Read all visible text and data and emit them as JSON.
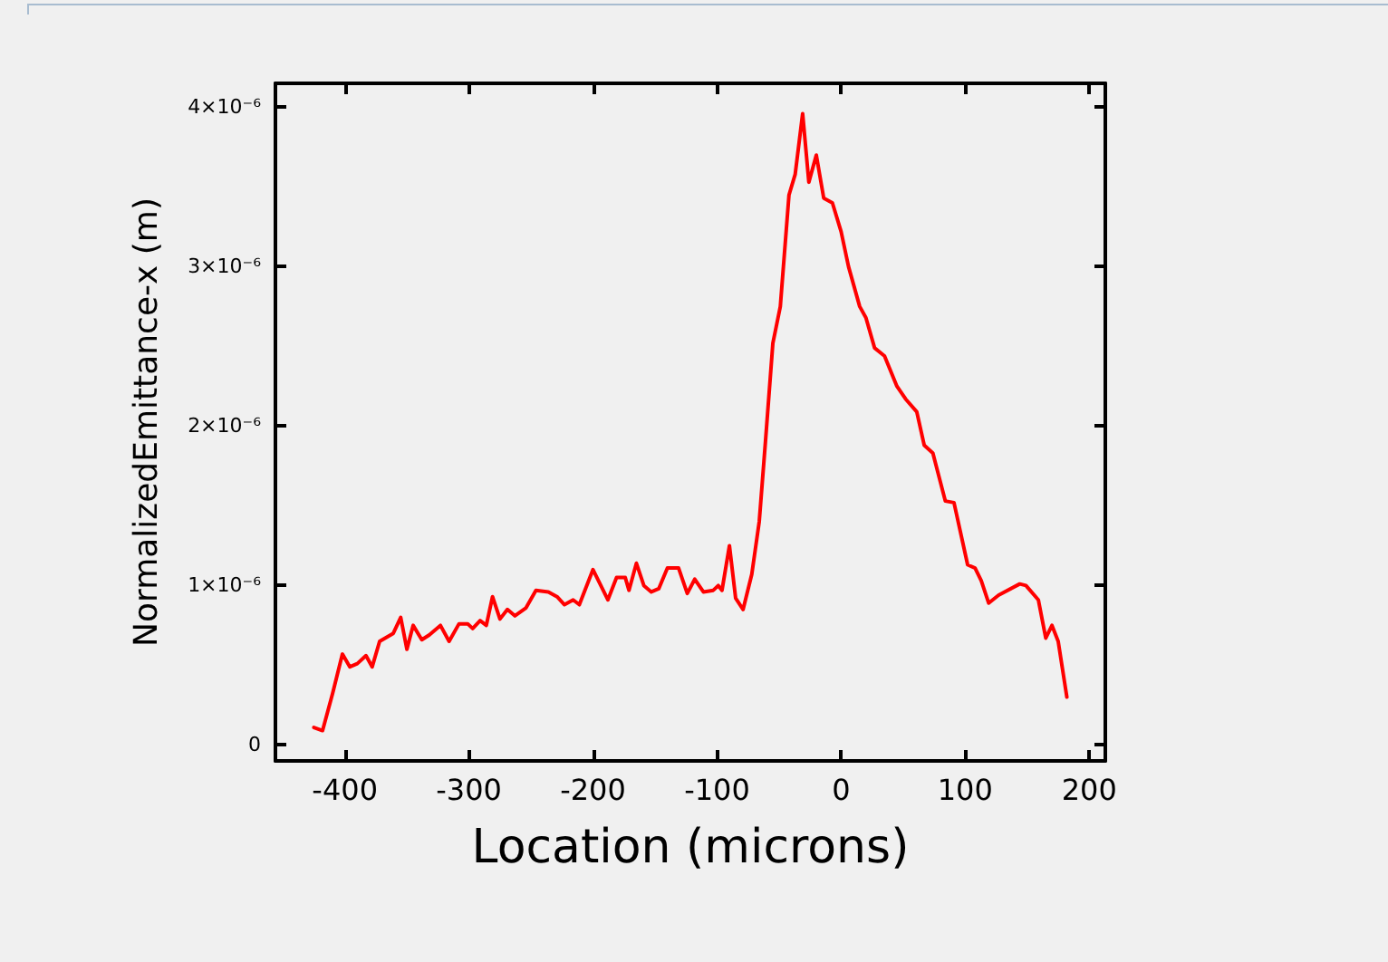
{
  "chart_data": {
    "type": "line",
    "xlabel": "Location (microns)",
    "ylabel": "NormalizedEmittance-x (m)",
    "xlim": [
      -456,
      213
    ],
    "ylim": [
      -1e-07,
      4.15e-06
    ],
    "xticks": [
      -400,
      -300,
      -200,
      -100,
      0,
      100,
      200
    ],
    "yticks": [
      0,
      {
        "value": 1e-06,
        "label": "1×10⁻⁶"
      },
      {
        "value": 2e-06,
        "label": "2×10⁻⁶"
      },
      {
        "value": 3e-06,
        "label": "3×10⁻⁶"
      },
      {
        "value": 4e-06,
        "label": "4×10⁻⁶"
      }
    ],
    "grid": false,
    "marker": "none",
    "line_style": "solid",
    "series": [
      {
        "color": "#ff0000",
        "x": [
          -425,
          -418,
          -410,
          -402,
          -396,
          -390,
          -383,
          -378,
          -372,
          -361,
          -355,
          -350,
          -345,
          -338,
          -332,
          -323,
          -316,
          -308,
          -301,
          -297,
          -291,
          -286,
          -281,
          -275,
          -269,
          -263,
          -254,
          -246,
          -236,
          -229,
          -223,
          -216,
          -211,
          -200,
          -188,
          -181,
          -174,
          -171,
          -165,
          -159,
          -153,
          -147,
          -140,
          -131,
          -124,
          -118,
          -111,
          -103,
          -99,
          -96,
          -90,
          -85,
          -79,
          -72,
          -66,
          -61,
          -55,
          -49,
          -42,
          -37,
          -31,
          -26,
          -20,
          -14,
          -7,
          0,
          6,
          15,
          20,
          27,
          35,
          45,
          52,
          61,
          67,
          74,
          84,
          91,
          102,
          108,
          113,
          119,
          127,
          144,
          149,
          159,
          165,
          170,
          175,
          182
        ],
        "values": [
          1.1e-07,
          9e-08,
          3.2e-07,
          5.7e-07,
          4.9e-07,
          5.1e-07,
          5.6e-07,
          4.9e-07,
          6.5e-07,
          7e-07,
          8e-07,
          6e-07,
          7.5e-07,
          6.6e-07,
          6.9e-07,
          7.5e-07,
          6.5e-07,
          7.6e-07,
          7.6e-07,
          7.3e-07,
          7.8e-07,
          7.5e-07,
          9.3e-07,
          7.9e-07,
          8.5e-07,
          8.1e-07,
          8.6e-07,
          9.7e-07,
          9.6e-07,
          9.3e-07,
          8.8e-07,
          9.1e-07,
          8.8e-07,
          1.1e-06,
          9.1e-07,
          1.05e-06,
          1.05e-06,
          9.7e-07,
          1.14e-06,
          1e-06,
          9.6e-07,
          9.8e-07,
          1.11e-06,
          1.11e-06,
          9.5e-07,
          1.04e-06,
          9.6e-07,
          9.7e-07,
          1e-06,
          9.7e-07,
          1.25e-06,
          9.2e-07,
          8.5e-07,
          1.07e-06,
          1.4e-06,
          1.9e-06,
          2.52e-06,
          2.75e-06,
          3.45e-06,
          3.58e-06,
          3.96e-06,
          3.53e-06,
          3.7e-06,
          3.43e-06,
          3.4e-06,
          3.22e-06,
          3e-06,
          2.75e-06,
          2.68e-06,
          2.49e-06,
          2.44e-06,
          2.25e-06,
          2.17e-06,
          2.09e-06,
          1.88e-06,
          1.83e-06,
          1.53e-06,
          1.52e-06,
          1.13e-06,
          1.11e-06,
          1.03e-06,
          8.9e-07,
          9.4e-07,
          1.01e-06,
          1e-06,
          9.1e-07,
          6.7e-07,
          7.5e-07,
          6.5e-07,
          3e-07
        ]
      }
    ]
  }
}
